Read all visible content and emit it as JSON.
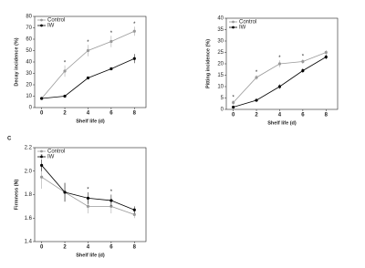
{
  "chart_data": [
    {
      "type": "line",
      "ylabel": "Decay incidence (%)",
      "xlabel": "Shelf life (d)",
      "x": [
        0,
        2,
        4,
        6,
        8
      ],
      "xlim": [
        -0.6,
        9
      ],
      "xticks": [
        0,
        2,
        4,
        6,
        8
      ],
      "ylim": [
        0,
        80
      ],
      "yticks": [
        0,
        10,
        20,
        30,
        40,
        50,
        60,
        70,
        80
      ],
      "legend": "upper left",
      "series": [
        {
          "name": "Control",
          "color": "#999999",
          "values": [
            8,
            32,
            50,
            58,
            67
          ],
          "errors": [
            1,
            5,
            5,
            5,
            4
          ]
        },
        {
          "name": "IW",
          "color": "#000000",
          "values": [
            8,
            10,
            26,
            34,
            43
          ],
          "errors": [
            1,
            1,
            1,
            1,
            4
          ]
        }
      ],
      "markers": [
        null,
        "*",
        "*",
        "*",
        "*"
      ]
    },
    {
      "type": "line",
      "ylabel": "Pitting incidence (%)",
      "xlabel": "Shelf life (d)",
      "x": [
        0,
        2,
        4,
        6,
        8
      ],
      "xlim": [
        -0.6,
        9
      ],
      "xticks": [
        0,
        2,
        4,
        6,
        8
      ],
      "ylim": [
        0,
        40
      ],
      "yticks": [
        0,
        5,
        10,
        15,
        20,
        25,
        30,
        35,
        40
      ],
      "legend": "upper left",
      "series": [
        {
          "name": "Control",
          "color": "#999999",
          "values": [
            3,
            14,
            20,
            21,
            25
          ],
          "errors": [
            1,
            1,
            1.5,
            1,
            1
          ]
        },
        {
          "name": "IW",
          "color": "#000000",
          "values": [
            1,
            4,
            10,
            17,
            23
          ],
          "errors": [
            0.5,
            0.5,
            1,
            1,
            1
          ]
        }
      ],
      "markers": [
        "*",
        "*",
        "*",
        "*",
        null
      ]
    },
    {
      "type": "line",
      "panel_label": "C",
      "ylabel": "Firmness (N)",
      "xlabel": "Shelf life (d)",
      "x": [
        0,
        2,
        4,
        6,
        8
      ],
      "xlim": [
        -0.6,
        9
      ],
      "xticks": [
        0,
        2,
        4,
        6,
        8
      ],
      "ylim": [
        1.4,
        2.2
      ],
      "yticks": [
        1.4,
        1.6,
        1.8,
        {
          "value": 2,
          "label": "2.0"
        },
        2.2
      ],
      "legend": "upper left",
      "series": [
        {
          "name": "Control",
          "color": "#999999",
          "values": [
            1.95,
            1.82,
            1.7,
            1.7,
            1.63
          ],
          "errors": [
            0.1,
            0.08,
            0.06,
            0.06,
            0.03
          ]
        },
        {
          "name": "IW",
          "color": "#000000",
          "values": [
            2.05,
            1.82,
            1.77,
            1.75,
            1.67
          ],
          "errors": [
            0.05,
            0.08,
            0.05,
            0.05,
            0.03
          ]
        }
      ],
      "markers": [
        "*",
        null,
        "*",
        "*",
        null
      ]
    }
  ]
}
